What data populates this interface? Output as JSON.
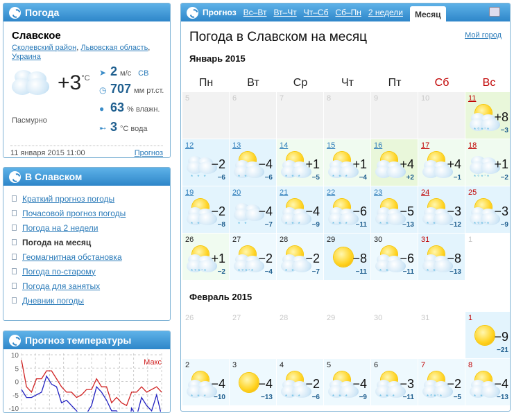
{
  "current": {
    "title": "Погода",
    "city": "Славское",
    "region": [
      "Сколевский район",
      "Львовская область",
      "Украина"
    ],
    "temp": "+3",
    "temp_unit": "°C",
    "condition": "Пасмурно",
    "icon": "overcast-icon",
    "wind": {
      "value": "2",
      "unit": "м/с",
      "dir": "СВ"
    },
    "pressure": {
      "value": "707",
      "unit": "мм рт.ст."
    },
    "humidity": {
      "value": "63",
      "unit": "% влажн."
    },
    "water": {
      "value": "3",
      "unit": "°C вода"
    },
    "timestamp": "11 января 2015 11:00",
    "forecast_link": "Прогноз"
  },
  "city_box": {
    "title": "В Славском",
    "links": [
      "Краткий прогноз погоды",
      "Почасовой прогноз погоды",
      "Погода на 2 недели",
      "Погода на месяц",
      "Геомагнитная обстановка",
      "Погода по-старому",
      "Погода для занятых",
      "Дневник погоды"
    ],
    "active": 3
  },
  "temp_box": {
    "title": "Прогноз температуры"
  },
  "main": {
    "tabs_label": "Прогноз",
    "tabs": [
      "Вс–Вт",
      "Вт–Чт",
      "Чт–Сб",
      "Сб–Пн",
      "2 недели",
      "Месяц"
    ],
    "active_tab": "Месяц",
    "title": "Погода в Славском на месяц",
    "my_city": "Мой город",
    "weekdays": [
      "Пн",
      "Вт",
      "Ср",
      "Чт",
      "Пт",
      "Сб",
      "Вс"
    ],
    "weekend_color": "#c00000",
    "months": [
      {
        "name": "Январь 2015",
        "rows": [
          [
            {
              "d": "5",
              "p": 1
            },
            {
              "d": "6",
              "p": 1
            },
            {
              "d": "7",
              "p": 1
            },
            {
              "d": "8",
              "p": 1
            },
            {
              "d": "9",
              "p": 1
            },
            {
              "d": "10",
              "p": 1
            },
            {
              "d": "11",
              "w": "partly",
              "hi": "+8",
              "lo": "−3",
              "pr": "*°*'*",
              "bg": "g",
              "l": 1,
              "r": 1
            }
          ],
          [
            {
              "d": "12",
              "w": "cloudy",
              "hi": "−2",
              "lo": "−6",
              "pr": "* * *",
              "bg": "b",
              "l": 1
            },
            {
              "d": "13",
              "w": "partly",
              "hi": "−4",
              "lo": "−6",
              "pr": "* *",
              "bg": "b",
              "l": 1
            },
            {
              "d": "14",
              "w": "partly",
              "hi": "+1",
              "lo": "−5",
              "pr": "* * *",
              "bg": "lg",
              "l": 1
            },
            {
              "d": "15",
              "w": "partly",
              "hi": "+1",
              "lo": "−4",
              "pr": "* * *",
              "bg": "lg",
              "l": 1
            },
            {
              "d": "16",
              "w": "partly",
              "hi": "+4",
              "lo": "+2",
              "pr": "",
              "bg": "g",
              "l": 1
            },
            {
              "d": "17",
              "w": "partly",
              "hi": "+4",
              "lo": "−1",
              "pr": "",
              "bg": "lg",
              "l": 1,
              "r": 1
            },
            {
              "d": "18",
              "w": "cloudy",
              "hi": "+1",
              "lo": "−2",
              "pr": "*°*'*",
              "bg": "lg",
              "l": 1,
              "r": 1
            }
          ],
          [
            {
              "d": "19",
              "w": "partly",
              "hi": "−2",
              "lo": "−8",
              "pr": "* *",
              "bg": "b",
              "l": 1
            },
            {
              "d": "20",
              "w": "cloudy",
              "hi": "−4",
              "lo": "−7",
              "pr": "* *",
              "bg": "b",
              "l": 1
            },
            {
              "d": "21",
              "w": "partly",
              "hi": "−4",
              "lo": "−9",
              "pr": "* * *",
              "bg": "b",
              "l": 1
            },
            {
              "d": "22",
              "w": "partly",
              "hi": "−6",
              "lo": "−11",
              "pr": "* * *",
              "bg": "b",
              "l": 1
            },
            {
              "d": "23",
              "w": "partly",
              "hi": "−5",
              "lo": "−13",
              "pr": "* *",
              "bg": "b",
              "l": 1
            },
            {
              "d": "24",
              "w": "partly",
              "hi": "−3",
              "lo": "−12",
              "pr": "* *",
              "bg": "b",
              "l": 1,
              "r": 1
            },
            {
              "d": "25",
              "w": "partly",
              "hi": "−3",
              "lo": "−9",
              "pr": "*°*'*",
              "bg": "b",
              "r": 1
            }
          ],
          [
            {
              "d": "26",
              "w": "partly",
              "hi": "+1",
              "lo": "−2",
              "pr": "*°*'*",
              "bg": "lg"
            },
            {
              "d": "27",
              "w": "partly",
              "hi": "−2",
              "lo": "−4",
              "pr": "*°*'*",
              "bg": "lb"
            },
            {
              "d": "28",
              "w": "partly",
              "hi": "−2",
              "lo": "−7",
              "pr": "* *",
              "bg": "lb"
            },
            {
              "d": "29",
              "w": "sun",
              "hi": "−8",
              "lo": "−11",
              "pr": "",
              "bg": "b"
            },
            {
              "d": "30",
              "w": "partly",
              "hi": "−6",
              "lo": "−11",
              "pr": "* *",
              "bg": "lb"
            },
            {
              "d": "31",
              "w": "partly",
              "hi": "−8",
              "lo": "−13",
              "pr": "* *",
              "bg": "b",
              "r": 1
            },
            {
              "d": "1",
              "p": 1,
              "bg": "w"
            }
          ]
        ]
      },
      {
        "name": "Февраль 2015",
        "rows": [
          [
            {
              "d": "26",
              "p": 1,
              "bg": "w"
            },
            {
              "d": "27",
              "p": 1,
              "bg": "w"
            },
            {
              "d": "28",
              "p": 1,
              "bg": "w"
            },
            {
              "d": "29",
              "p": 1,
              "bg": "w"
            },
            {
              "d": "30",
              "p": 1,
              "bg": "w"
            },
            {
              "d": "31",
              "p": 1,
              "bg": "w"
            },
            {
              "d": "1",
              "w": "sun",
              "hi": "−9",
              "lo": "−21",
              "pr": "",
              "bg": "b",
              "r": 1
            }
          ],
          [
            {
              "d": "2",
              "w": "partly",
              "hi": "−4",
              "lo": "−10",
              "pr": "* * *",
              "bg": "lb"
            },
            {
              "d": "3",
              "w": "sun",
              "hi": "−4",
              "lo": "−13",
              "pr": "",
              "bg": "lb"
            },
            {
              "d": "4",
              "w": "partly",
              "hi": "−2",
              "lo": "−6",
              "pr": "* * *",
              "bg": "lb"
            },
            {
              "d": "5",
              "w": "partly",
              "hi": "−4",
              "lo": "−9",
              "pr": "* * *",
              "bg": "lb"
            },
            {
              "d": "6",
              "w": "partly",
              "hi": "−3",
              "lo": "−11",
              "pr": "* * *",
              "bg": "lb"
            },
            {
              "d": "7",
              "w": "partly",
              "hi": "−2",
              "lo": "−5",
              "pr": "*°*'*",
              "bg": "lb",
              "r": 1
            },
            {
              "d": "8",
              "w": "partly",
              "hi": "−4",
              "lo": "−13",
              "pr": "* *",
              "bg": "lb",
              "r": 1
            }
          ]
        ]
      }
    ]
  },
  "chart_data": {
    "type": "line",
    "yticks": [
      10,
      5,
      0,
      -5,
      -10
    ],
    "grid": true,
    "legend": "top-right",
    "series": [
      {
        "name": "Макс",
        "color": "#d02020",
        "values": [
          8,
          -2,
          -4,
          1,
          1,
          4,
          4,
          1,
          -2,
          -4,
          -4,
          -6,
          -5,
          -3,
          -3,
          1,
          -2,
          -2,
          -8,
          -6,
          -8,
          -9,
          -4,
          -4,
          -2,
          -4,
          -3,
          -2,
          -4
        ]
      },
      {
        "color": "#2020c0",
        "values": [
          -3,
          -6,
          -6,
          -5,
          -4,
          2,
          -1,
          -2,
          -8,
          -7,
          -9,
          -11,
          -13,
          -12,
          -9,
          -2,
          -4,
          -7,
          -11,
          -11,
          -13,
          -21,
          -10,
          -13,
          -6,
          -9,
          -11,
          -5,
          -13
        ]
      }
    ]
  }
}
